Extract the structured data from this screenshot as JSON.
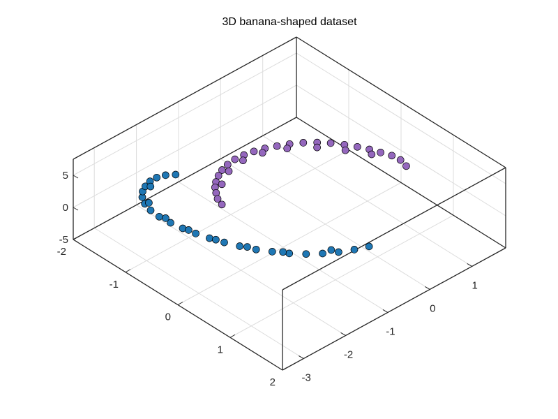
{
  "chart_data": {
    "type": "scatter",
    "title": "3D banana-shaped dataset",
    "xlabel": "",
    "ylabel": "",
    "zlabel": "",
    "xlim": [
      -2,
      2
    ],
    "ylim": [
      -3.5,
      1.8
    ],
    "zlim": [
      -5,
      7.5
    ],
    "xticks": [
      "-2",
      "-1",
      "0",
      "1",
      "2"
    ],
    "yticks": [
      "-3",
      "-2",
      "-1",
      "0",
      "1"
    ],
    "zticks": [
      "-5",
      "0",
      "5"
    ],
    "grid": true,
    "view": "isometric-3d",
    "series": [
      {
        "color": "#9467bd",
        "points": [
          [
            0.3,
            1.55,
            0
          ],
          [
            0.15,
            1.6,
            0
          ],
          [
            0.0,
            1.58,
            0
          ],
          [
            -0.15,
            1.5,
            0
          ],
          [
            -0.3,
            1.42,
            0
          ],
          [
            -0.45,
            1.32,
            0
          ],
          [
            -0.6,
            1.2,
            0
          ],
          [
            -0.75,
            1.06,
            0
          ],
          [
            -0.88,
            0.9,
            0
          ],
          [
            -1.0,
            0.72,
            0
          ],
          [
            -1.1,
            0.52,
            0
          ],
          [
            -1.18,
            0.32,
            0
          ],
          [
            -1.25,
            0.12,
            0
          ],
          [
            -1.3,
            -0.08,
            0
          ],
          [
            -1.33,
            -0.28,
            0
          ],
          [
            -1.34,
            -0.48,
            0
          ],
          [
            -1.32,
            -0.68,
            0
          ],
          [
            -1.28,
            -0.86,
            0
          ],
          [
            -1.22,
            -1.02,
            0
          ],
          [
            -1.14,
            -1.18,
            0
          ],
          [
            -1.06,
            -1.3,
            0
          ],
          [
            -0.96,
            -1.4,
            0
          ],
          [
            -0.85,
            -1.5,
            0
          ],
          [
            -0.72,
            -1.56,
            0
          ],
          [
            -0.2,
            1.35,
            0
          ],
          [
            -0.5,
            1.1,
            0
          ],
          [
            -0.8,
            0.8,
            0
          ],
          [
            -1.05,
            0.4,
            0
          ],
          [
            -1.2,
            0.0,
            0
          ],
          [
            -1.25,
            -0.4,
            0
          ],
          [
            -1.2,
            -0.8,
            0
          ],
          [
            -1.05,
            -1.15,
            0
          ]
        ]
      },
      {
        "color": "#1f77b4",
        "points": [
          [
            1.28,
            -0.55,
            0
          ],
          [
            1.2,
            -0.8,
            0
          ],
          [
            1.1,
            -1.05,
            0
          ],
          [
            0.98,
            -1.28,
            0
          ],
          [
            0.84,
            -1.5,
            0
          ],
          [
            0.68,
            -1.7,
            0
          ],
          [
            0.5,
            -1.88,
            0
          ],
          [
            0.32,
            -2.04,
            0
          ],
          [
            0.12,
            -2.18,
            0
          ],
          [
            -0.08,
            -2.3,
            0
          ],
          [
            -0.28,
            -2.4,
            0
          ],
          [
            -0.48,
            -2.48,
            0
          ],
          [
            -0.68,
            -2.54,
            0
          ],
          [
            -0.88,
            -2.58,
            0
          ],
          [
            -1.08,
            -2.6,
            0
          ],
          [
            -1.26,
            -2.58,
            0
          ],
          [
            -1.42,
            -2.52,
            0
          ],
          [
            -1.55,
            -2.42,
            0
          ],
          [
            -1.64,
            -2.3,
            0
          ],
          [
            -1.7,
            -2.16,
            0
          ],
          [
            -1.74,
            -2.0,
            0
          ],
          [
            -1.74,
            -1.84,
            0
          ],
          [
            -1.7,
            -1.68,
            0
          ],
          [
            -1.62,
            -1.54,
            0
          ],
          [
            1.0,
            -1.1,
            0
          ],
          [
            0.6,
            -1.75,
            0
          ],
          [
            0.2,
            -2.1,
            0
          ],
          [
            -0.2,
            -2.35,
            0
          ],
          [
            -0.6,
            -2.5,
            0
          ],
          [
            -1.0,
            -2.55,
            0
          ],
          [
            -1.4,
            -2.45,
            0
          ],
          [
            -1.65,
            -2.1,
            0
          ]
        ]
      }
    ]
  }
}
